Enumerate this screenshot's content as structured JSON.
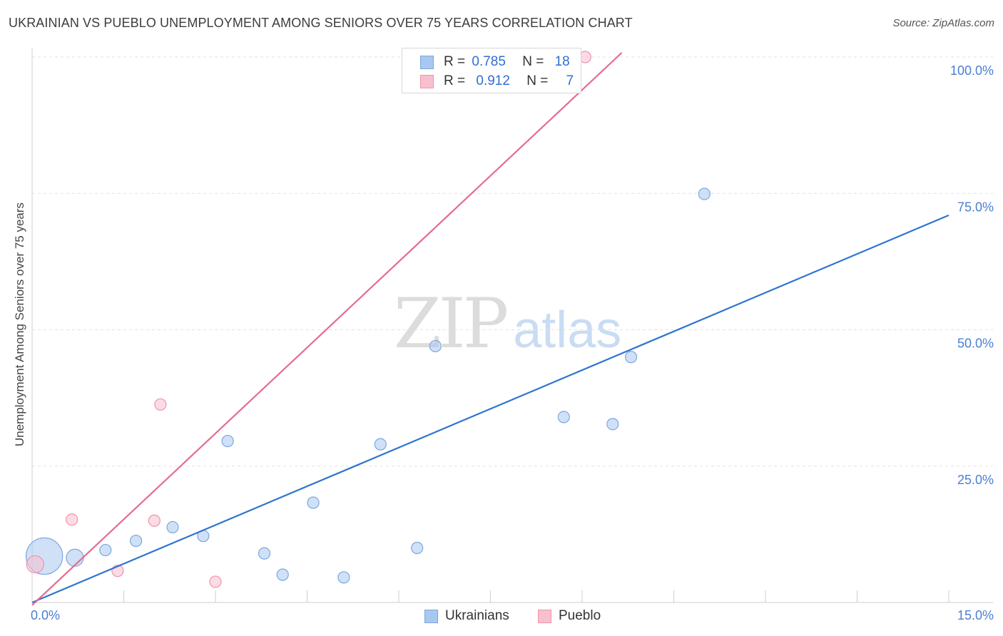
{
  "title": "UKRAINIAN VS PUEBLO UNEMPLOYMENT AMONG SENIORS OVER 75 YEARS CORRELATION CHART",
  "source": "Source: ZipAtlas.com",
  "watermark": {
    "zip": "ZIP",
    "atlas": "atlas"
  },
  "legend": {
    "rows": [
      {
        "r_label": "R =",
        "r_value": "0.785",
        "n_label": "N =",
        "n_value": "18",
        "color": "#a9c8f0",
        "border": "#7aa6e0"
      },
      {
        "r_label": "R =",
        "r_value": "0.912",
        "n_label": "N =",
        "n_value": "7",
        "color": "#f8c0cf",
        "border": "#ec93ad"
      }
    ]
  },
  "bottom_legend": {
    "ukrainians": "Ukrainians",
    "pueblo": "Pueblo"
  },
  "chart_data": {
    "type": "scatter",
    "title": "UKRAINIAN VS PUEBLO UNEMPLOYMENT AMONG SENIORS OVER 75 YEARS CORRELATION CHART",
    "xlabel": "",
    "ylabel": "Unemployment Among Seniors over 75 years",
    "xlim": [
      0,
      15
    ],
    "ylim": [
      0,
      100
    ],
    "x_tick_labels": [
      "0.0%",
      "15.0%"
    ],
    "y_tick_labels": [
      "100.0%",
      "75.0%",
      "50.0%",
      "25.0%"
    ],
    "y_ticks": [
      100,
      75,
      50,
      25
    ],
    "grid": true,
    "series": [
      {
        "name": "Ukrainians",
        "color": "#a9c8f0",
        "edge": "#7aa6e0",
        "line_color": "#2f74d0",
        "trend": {
          "x": [
            0,
            15
          ],
          "y": [
            0,
            71
          ]
        },
        "points": [
          {
            "x": 0.2,
            "y": 8.5,
            "s": 3.2
          },
          {
            "x": 0.7,
            "y": 8.2,
            "s": 1.5
          },
          {
            "x": 1.2,
            "y": 9.6,
            "s": 1
          },
          {
            "x": 1.7,
            "y": 11.3,
            "s": 1
          },
          {
            "x": 2.3,
            "y": 13.8,
            "s": 1
          },
          {
            "x": 2.8,
            "y": 12.2,
            "s": 1
          },
          {
            "x": 3.2,
            "y": 29.6,
            "s": 1
          },
          {
            "x": 3.8,
            "y": 9.0,
            "s": 1
          },
          {
            "x": 4.1,
            "y": 5.1,
            "s": 1
          },
          {
            "x": 4.6,
            "y": 18.3,
            "s": 1
          },
          {
            "x": 5.1,
            "y": 4.6,
            "s": 1
          },
          {
            "x": 5.7,
            "y": 29.0,
            "s": 1
          },
          {
            "x": 6.3,
            "y": 10.0,
            "s": 1
          },
          {
            "x": 6.6,
            "y": 47.0,
            "s": 1
          },
          {
            "x": 8.7,
            "y": 34.0,
            "s": 1
          },
          {
            "x": 9.5,
            "y": 32.7,
            "s": 1
          },
          {
            "x": 9.8,
            "y": 45.0,
            "s": 1
          },
          {
            "x": 11.0,
            "y": 74.9,
            "s": 1
          }
        ]
      },
      {
        "name": "Pueblo",
        "color": "#f8c0cf",
        "edge": "#ec93ad",
        "line_color": "#e56b93",
        "trend": {
          "x": [
            0,
            9.65
          ],
          "y": [
            -0.5,
            100.8
          ]
        },
        "points": [
          {
            "x": 0.05,
            "y": 7.0,
            "s": 1.5
          },
          {
            "x": 0.65,
            "y": 15.2,
            "s": 1
          },
          {
            "x": 1.4,
            "y": 5.8,
            "s": 1
          },
          {
            "x": 2.1,
            "y": 36.3,
            "s": 1
          },
          {
            "x": 2.0,
            "y": 15.0,
            "s": 1
          },
          {
            "x": 3.0,
            "y": 3.8,
            "s": 1
          },
          {
            "x": 9.05,
            "y": 100.0,
            "s": 1
          }
        ]
      }
    ]
  }
}
